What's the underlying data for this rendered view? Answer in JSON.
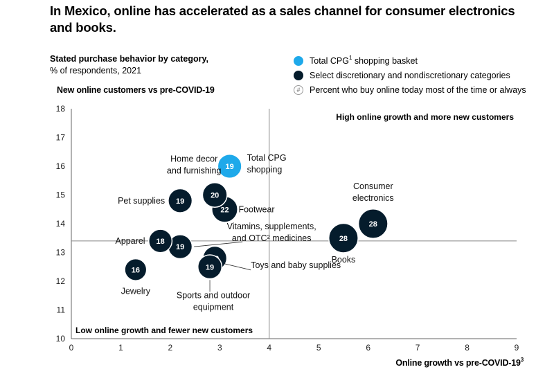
{
  "title": "In Mexico, online has accelerated as a sales channel for consumer electronics and books.",
  "subtitle": {
    "bold": "Stated purchase behavior by category,",
    "normal": "% of respondents, 2021"
  },
  "legend": {
    "items": [
      {
        "label": "Total CPG",
        "sup": "1",
        "label_after": " shopping basket",
        "icon": "light-blue-circle",
        "color": "#1EA9EA"
      },
      {
        "label": "Select discretionary and nondiscretionary categories",
        "sup": "",
        "label_after": "",
        "icon": "dark-navy-circle",
        "color": "#051C2C"
      },
      {
        "label": "Percent who buy online today most of the time or always",
        "sup": "",
        "label_after": "",
        "icon": "hash-circle",
        "color": "#FFFFFF"
      }
    ]
  },
  "chart_data": {
    "type": "scatter",
    "ylabel": "New online customers vs pre-COVID-19",
    "xlabel": "Online growth vs pre-COVID-19",
    "xlabel_sup": "3",
    "xlim": [
      0,
      9
    ],
    "ylim": [
      10,
      18
    ],
    "xticks": [
      0,
      1,
      2,
      3,
      4,
      5,
      6,
      7,
      8,
      9
    ],
    "yticks": [
      10,
      11,
      12,
      13,
      14,
      15,
      16,
      17,
      18
    ],
    "reference_lines": {
      "x": 4,
      "y": 13.4
    },
    "quadrant_labels": {
      "top_right": "High online growth and more new customers",
      "bottom_left": "Low online growth and fewer new customers"
    },
    "points": [
      {
        "name": "Total CPG shopping",
        "label_lines": [
          "Total CPG",
          "shopping"
        ],
        "x": 3.2,
        "y": 16.0,
        "value": 19,
        "group": "cpg",
        "color": "#1EA9EA"
      },
      {
        "name": "Home decor and furnishing",
        "label_lines": [
          "Home decor",
          "and furnishing"
        ],
        "x": 2.9,
        "y": 15.0,
        "value": 20,
        "group": "category",
        "color": "#051C2C"
      },
      {
        "name": "Footwear",
        "label_lines": [
          "Footwear"
        ],
        "x": 3.1,
        "y": 14.5,
        "value": 22,
        "group": "category",
        "color": "#051C2C"
      },
      {
        "name": "Pet supplies",
        "label_lines": [
          "Pet supplies"
        ],
        "x": 2.2,
        "y": 14.8,
        "value": 19,
        "group": "category",
        "color": "#051C2C"
      },
      {
        "name": "Consumer electronics",
        "label_lines": [
          "Consumer",
          "electronics"
        ],
        "x": 6.1,
        "y": 14.0,
        "value": 28,
        "group": "category",
        "color": "#051C2C"
      },
      {
        "name": "Books",
        "label_lines": [
          "Books"
        ],
        "x": 5.5,
        "y": 13.5,
        "value": 28,
        "group": "category",
        "color": "#051C2C"
      },
      {
        "name": "Apparel",
        "label_lines": [
          "Apparel"
        ],
        "x": 1.8,
        "y": 13.4,
        "value": 18,
        "group": "category",
        "color": "#051C2C"
      },
      {
        "name": "Vitamins, supplements, and OTC medicines",
        "label_lines": [
          "Vitamins, supplements,",
          "and OTC² medicines"
        ],
        "x": 2.2,
        "y": 13.2,
        "value": 19,
        "group": "category",
        "color": "#051C2C"
      },
      {
        "name": "Toys and baby supplies",
        "label_lines": [
          "Toys and baby supplies"
        ],
        "x": 2.9,
        "y": 12.8,
        "value": 19,
        "group": "category",
        "color": "#051C2C"
      },
      {
        "name": "Sports and outdoor equipment",
        "label_lines": [
          "Sports and outdoor",
          "equipment"
        ],
        "x": 2.8,
        "y": 12.5,
        "value": 19,
        "group": "category",
        "color": "#051C2C"
      },
      {
        "name": "Jewelry",
        "label_lines": [
          "Jewelry"
        ],
        "x": 1.3,
        "y": 12.4,
        "value": 16,
        "group": "category",
        "color": "#051C2C"
      }
    ]
  }
}
